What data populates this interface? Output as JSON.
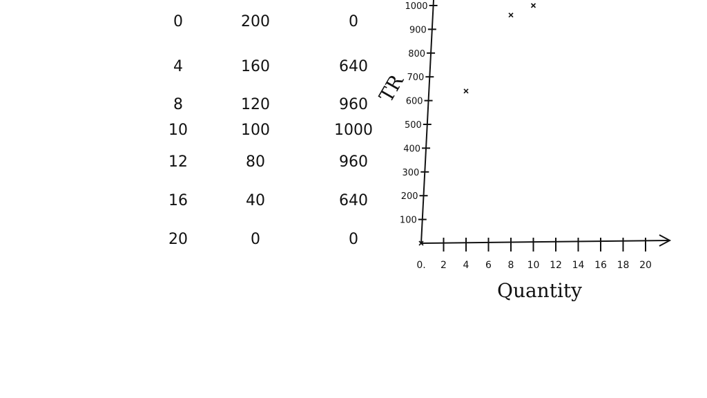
{
  "table": {
    "rows": [
      [
        "0",
        "200",
        "0"
      ],
      [
        "4",
        "160",
        "640"
      ],
      [
        "8",
        "120",
        "960"
      ],
      [
        "10",
        "100",
        "1000"
      ],
      [
        "12",
        "80",
        "960"
      ],
      [
        "16",
        "40",
        "640"
      ],
      [
        "20",
        "0",
        "0"
      ]
    ]
  },
  "colors": {
    "ink": "#111111",
    "background": "#ffffff"
  },
  "chart_data": {
    "type": "scatter",
    "title": "",
    "xlabel": "Quantity",
    "ylabel": "TR",
    "xlim": [
      0,
      20
    ],
    "ylim": [
      0,
      1000
    ],
    "x_ticks": [
      {
        "value": 0,
        "label": "0."
      },
      {
        "value": 2,
        "label": "2"
      },
      {
        "value": 4,
        "label": "4"
      },
      {
        "value": 6,
        "label": "6"
      },
      {
        "value": 8,
        "label": "8"
      },
      {
        "value": 10,
        "label": "10"
      },
      {
        "value": 12,
        "label": "12"
      },
      {
        "value": 14,
        "label": "14"
      },
      {
        "value": 16,
        "label": "16"
      },
      {
        "value": 18,
        "label": "18"
      },
      {
        "value": 20,
        "label": "20"
      }
    ],
    "y_ticks": [
      {
        "value": 100,
        "label": "100"
      },
      {
        "value": 200,
        "label": "200"
      },
      {
        "value": 300,
        "label": "300"
      },
      {
        "value": 400,
        "label": "400"
      },
      {
        "value": 500,
        "label": "500"
      },
      {
        "value": 600,
        "label": "600"
      },
      {
        "value": 700,
        "label": "700"
      },
      {
        "value": 800,
        "label": "800"
      },
      {
        "value": 900,
        "label": "900"
      },
      {
        "value": 1000,
        "label": "1000"
      }
    ],
    "points": [
      {
        "x": 0,
        "y": 0
      },
      {
        "x": 4,
        "y": 640
      },
      {
        "x": 8,
        "y": 960
      },
      {
        "x": 10,
        "y": 1000
      }
    ],
    "grid": false
  }
}
